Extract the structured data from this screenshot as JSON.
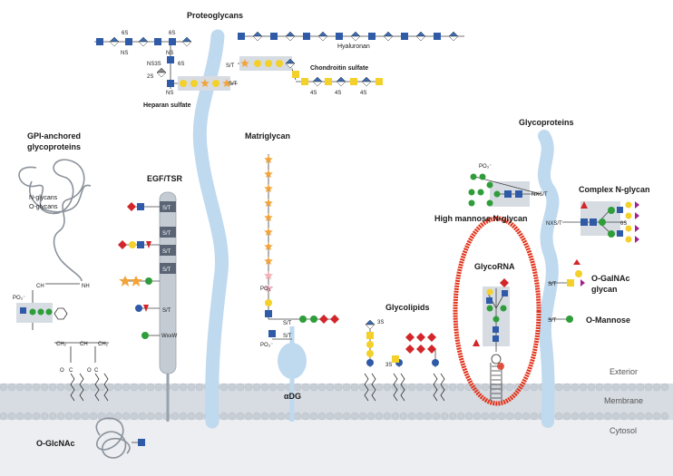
{
  "colors": {
    "glcnac": "#2f5aa8",
    "galnac": "#f3d02a",
    "gal": "#f3d02a",
    "mannose": "#2f9d3a",
    "fucose": "#d2262a",
    "sialic": "#a0238c",
    "xylose": "#f2a33a",
    "glca": "#3a6bb5",
    "glycorna_ring": "#e2331b",
    "membrane": "#d7dce2",
    "cytosol": "#eceef1",
    "protein": "#bfd9ef"
  },
  "labels": {
    "proteoglycans": "Proteoglycans",
    "hyaluronan": "Hyaluronan",
    "chondroitin_sulfate": "Chondroitin sulfate",
    "heparan_sulfate": "Heparan sulfate",
    "gpi_anchored_1": "GPI-anchored",
    "gpi_anchored_2": "glycoproteins",
    "n_glycans": "N-glycans",
    "o_glycans": "O-glycans",
    "egf_tsr": "EGF/TSR",
    "matriglycan": "Matriglycan",
    "glycoproteins": "Glycoproteins",
    "complex_n_glycan": "Complex N-glycan",
    "high_mannose_n_glycan": "High mannose N-glycan",
    "glycorna": "GlycoRNA",
    "glycolipids": "Glycolipids",
    "o_galnac_1": "O-GalNAc",
    "o_galnac_2": "glycan",
    "o_mannose": "O-Mannose",
    "adg": "αDG",
    "o_glcnac": "O-GlcNAc",
    "exterior": "Exterior",
    "membrane": "Membrane",
    "cytosol": "Cytosol"
  },
  "small_text": {
    "sulf_6s_a": "6S",
    "sulf_6s_b": "6S",
    "ns_a": "NS",
    "ns_b": "NS",
    "ns3s6s": "NS3S",
    "six_s": "6S",
    "two_s": "2S",
    "ns_c": "NS",
    "st_heparan": "S/T",
    "st_chond": "S/T",
    "chond_4s_1": "4S",
    "chond_4s_2": "4S",
    "chond_4s_3": "4S",
    "gpi_ch": "CH",
    "gpi_nh": "NH",
    "gpi_po3": "PO₃⁻",
    "gpi_ch2_a": "CH₂",
    "gpi_ch2_b": "CH₂",
    "gpi_o_1": "O",
    "gpi_o_2": "O",
    "gpi_c_1": "C",
    "gpi_c_2": "C",
    "egf_st1": "S/T",
    "egf_st2": "S/T",
    "egf_st3": "S/T",
    "egf_st4": "S/T",
    "egf_st5": "S/T",
    "egf_wxxw": "WxxW",
    "po3_mat1": "PO₃⁻",
    "po3_mat2": "PO₃⁻",
    "mat_st1": "S/T",
    "mat_st2": "S/T",
    "hm_po3": "PO₃⁻",
    "hm_nxst": "NXS/T",
    "cx_nxst": "NXS/T",
    "cx_6s": "6S",
    "og_st": "S/T",
    "om_st": "S/T",
    "gl_3s_1": "3S",
    "gl_3s_2": "3S"
  }
}
